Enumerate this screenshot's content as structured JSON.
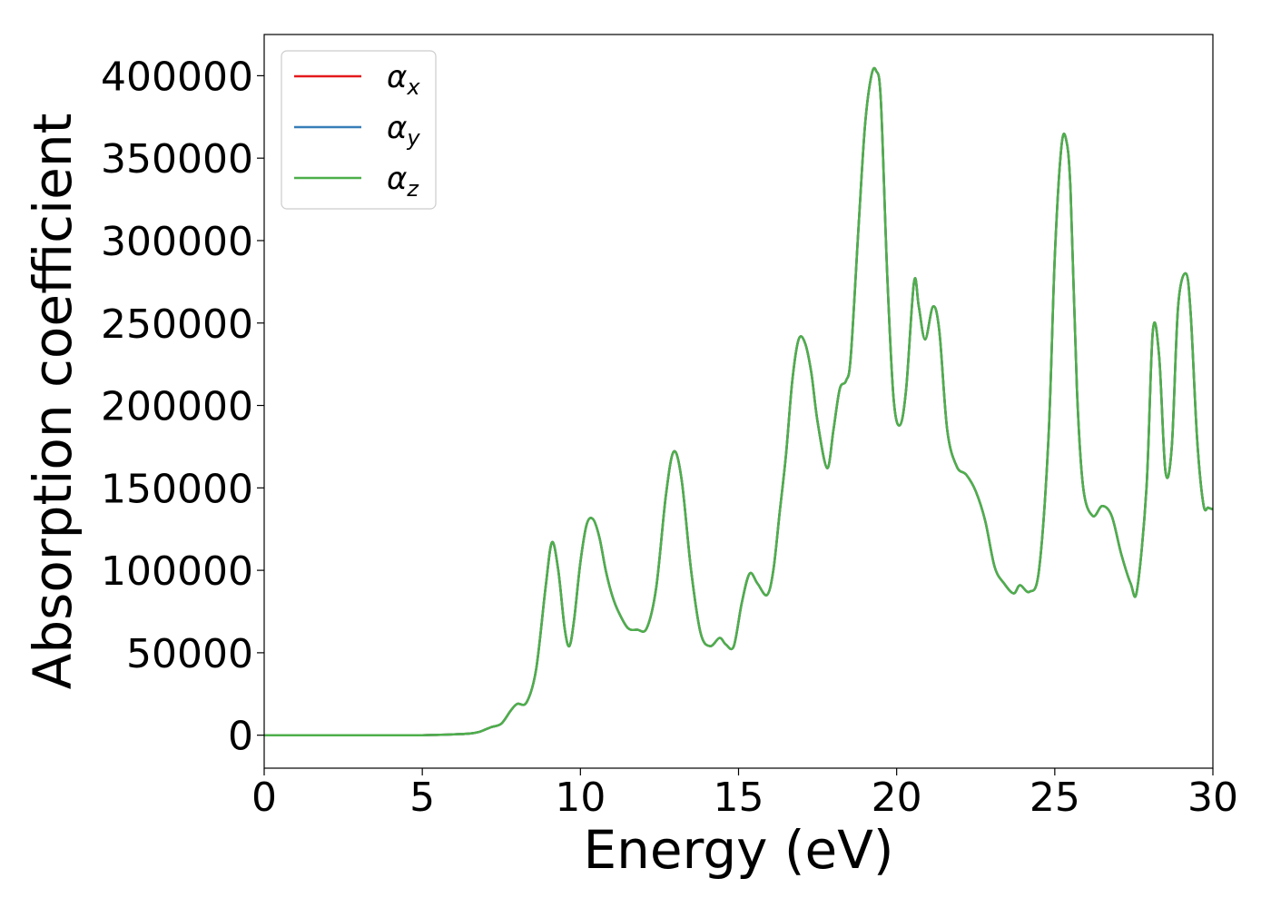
{
  "chart_data": {
    "type": "line",
    "xlabel": "Energy (eV)",
    "ylabel": "Absorption coefficient",
    "xlim": [
      0,
      30
    ],
    "ylim": [
      -20000,
      425000
    ],
    "xticks": [
      0,
      5,
      10,
      15,
      20,
      25,
      30
    ],
    "yticks": [
      0,
      50000,
      100000,
      150000,
      200000,
      250000,
      300000,
      350000,
      400000
    ],
    "grid": false,
    "legend_position": "top-left",
    "legend": [
      {
        "symbol": "α",
        "sub": "x",
        "color": "#e41a1c"
      },
      {
        "symbol": "α",
        "sub": "y",
        "color": "#377eb8"
      },
      {
        "symbol": "α",
        "sub": "z",
        "color": "#4daf4a"
      }
    ],
    "x": [
      0,
      2,
      4,
      5,
      6,
      6.5,
      6.8,
      7.0,
      7.2,
      7.5,
      7.8,
      8.0,
      8.3,
      8.6,
      8.9,
      9.1,
      9.3,
      9.5,
      9.65,
      9.8,
      10.0,
      10.2,
      10.4,
      10.6,
      10.8,
      11.0,
      11.2,
      11.5,
      11.8,
      12.1,
      12.4,
      12.7,
      12.95,
      13.2,
      13.5,
      13.8,
      14.1,
      14.4,
      14.6,
      14.85,
      15.1,
      15.35,
      15.6,
      15.9,
      16.1,
      16.3,
      16.5,
      16.7,
      16.9,
      17.1,
      17.3,
      17.5,
      17.8,
      18.0,
      18.2,
      18.4,
      18.55,
      18.8,
      19.0,
      19.2,
      19.35,
      19.5,
      19.7,
      19.9,
      20.1,
      20.3,
      20.55,
      20.7,
      20.9,
      21.15,
      21.35,
      21.6,
      21.9,
      22.2,
      22.5,
      22.8,
      23.1,
      23.4,
      23.7,
      23.9,
      24.2,
      24.5,
      24.8,
      25.0,
      25.2,
      25.35,
      25.5,
      25.7,
      25.9,
      26.2,
      26.5,
      26.8,
      27.1,
      27.4,
      27.6,
      27.9,
      28.1,
      28.3,
      28.5,
      28.7,
      28.9,
      29.15,
      29.3,
      29.5,
      29.7,
      29.85,
      30.0
    ],
    "series": [
      {
        "name": "α_x",
        "color": "#e41a1c",
        "values": [
          0,
          0,
          0,
          0,
          500,
          1000,
          2000,
          3500,
          5000,
          7000,
          15000,
          19000,
          20000,
          40000,
          90000,
          117000,
          100000,
          65000,
          54000,
          70000,
          105000,
          128000,
          131000,
          120000,
          100000,
          85000,
          75000,
          65000,
          64000,
          65000,
          90000,
          145000,
          172000,
          155000,
          100000,
          62000,
          54000,
          59000,
          55000,
          54000,
          80000,
          98000,
          92000,
          85000,
          100000,
          135000,
          170000,
          215000,
          240000,
          238000,
          220000,
          190000,
          162000,
          185000,
          210000,
          215000,
          230000,
          310000,
          370000,
          400000,
          403000,
          385000,
          280000,
          205000,
          188000,
          210000,
          275000,
          260000,
          240000,
          260000,
          245000,
          185000,
          163000,
          158000,
          148000,
          130000,
          102000,
          92000,
          86000,
          91000,
          87000,
          100000,
          180000,
          290000,
          355000,
          362000,
          330000,
          210000,
          150000,
          133000,
          139000,
          133000,
          110000,
          92000,
          88000,
          150000,
          245000,
          230000,
          160000,
          175000,
          260000,
          280000,
          255000,
          180000,
          140000,
          138000,
          137000
        ]
      },
      {
        "name": "α_y",
        "color": "#377eb8",
        "values": [
          0,
          0,
          0,
          0,
          500,
          1000,
          2000,
          3500,
          5000,
          7000,
          15000,
          19000,
          20000,
          40000,
          90000,
          117000,
          100000,
          65000,
          54000,
          70000,
          105000,
          128000,
          131000,
          120000,
          100000,
          85000,
          75000,
          65000,
          64000,
          65000,
          90000,
          145000,
          172000,
          155000,
          100000,
          62000,
          54000,
          59000,
          55000,
          54000,
          80000,
          98000,
          92000,
          85000,
          100000,
          135000,
          170000,
          215000,
          240000,
          238000,
          220000,
          190000,
          162000,
          185000,
          210000,
          215000,
          230000,
          310000,
          370000,
          400000,
          403000,
          385000,
          280000,
          205000,
          188000,
          210000,
          275000,
          260000,
          240000,
          260000,
          245000,
          185000,
          163000,
          158000,
          148000,
          130000,
          102000,
          92000,
          86000,
          91000,
          87000,
          100000,
          180000,
          290000,
          355000,
          362000,
          330000,
          210000,
          150000,
          133000,
          139000,
          133000,
          110000,
          92000,
          88000,
          150000,
          245000,
          230000,
          160000,
          175000,
          260000,
          280000,
          255000,
          180000,
          140000,
          138000,
          137000
        ]
      },
      {
        "name": "α_z",
        "color": "#4daf4a",
        "values": [
          0,
          0,
          0,
          0,
          500,
          1000,
          2000,
          3500,
          5000,
          7000,
          15000,
          19000,
          20000,
          40000,
          90000,
          117000,
          100000,
          65000,
          54000,
          70000,
          105000,
          128000,
          131000,
          120000,
          100000,
          85000,
          75000,
          65000,
          64000,
          65000,
          90000,
          145000,
          172000,
          155000,
          100000,
          62000,
          54000,
          59000,
          55000,
          54000,
          80000,
          98000,
          92000,
          85000,
          100000,
          135000,
          170000,
          215000,
          240000,
          238000,
          220000,
          190000,
          162000,
          185000,
          210000,
          215000,
          230000,
          310000,
          370000,
          400000,
          403000,
          385000,
          280000,
          205000,
          188000,
          210000,
          275000,
          260000,
          240000,
          260000,
          245000,
          185000,
          163000,
          158000,
          148000,
          130000,
          102000,
          92000,
          86000,
          91000,
          87000,
          100000,
          180000,
          290000,
          355000,
          362000,
          330000,
          210000,
          150000,
          133000,
          139000,
          133000,
          110000,
          92000,
          88000,
          150000,
          245000,
          230000,
          160000,
          175000,
          260000,
          280000,
          255000,
          180000,
          140000,
          138000,
          137000
        ]
      }
    ]
  }
}
